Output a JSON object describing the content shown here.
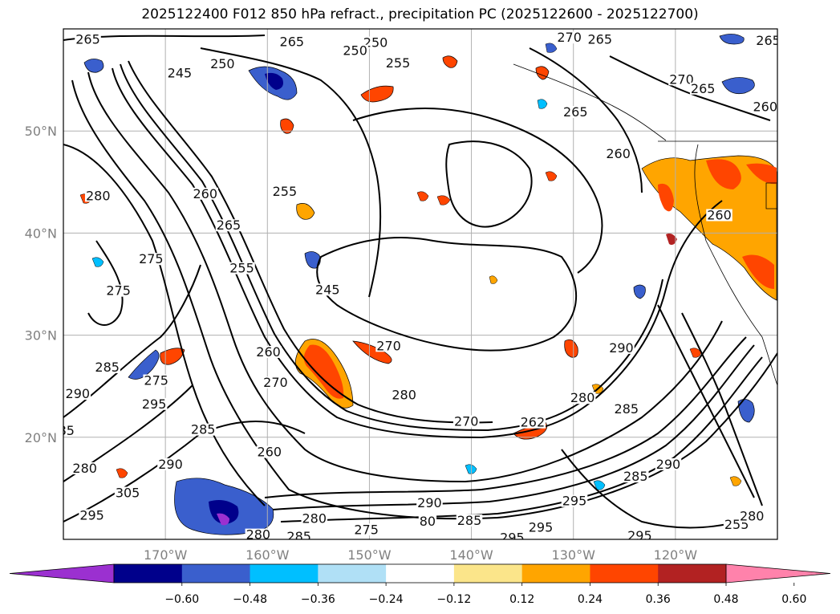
{
  "title": "2025122400 F012 850 hPa refract., precipitation PC (2025122600 - 2025122700)",
  "map": {
    "lat_labels": [
      "50°N",
      "40°N",
      "30°N",
      "20°N"
    ],
    "lat_values": [
      50,
      40,
      30,
      20
    ],
    "lon_labels": [
      "170°W",
      "160°W",
      "150°W",
      "140°W",
      "130°W",
      "120°W"
    ],
    "lon_values": [
      -170,
      -160,
      -150,
      -140,
      -130,
      -120
    ],
    "extent": {
      "lon_min": -180,
      "lon_max": -110,
      "lat_min": 10,
      "lat_max": 60
    },
    "grid": true,
    "contour_labels": [
      {
        "text": "265",
        "lon": -177.6,
        "lat": 59.0
      },
      {
        "text": "265",
        "lon": -157.6,
        "lat": 58.8
      },
      {
        "text": "250",
        "lon": -149.4,
        "lat": 58.7
      },
      {
        "text": "250",
        "lon": -151.4,
        "lat": 57.9
      },
      {
        "text": "255",
        "lon": -147.2,
        "lat": 56.7
      },
      {
        "text": "270",
        "lon": -130.4,
        "lat": 59.2
      },
      {
        "text": "265",
        "lon": -127.4,
        "lat": 59.0
      },
      {
        "text": "265",
        "lon": -110.9,
        "lat": 58.9
      },
      {
        "text": "250",
        "lon": -164.4,
        "lat": 56.6
      },
      {
        "text": "245",
        "lon": -168.6,
        "lat": 55.7
      },
      {
        "text": "270",
        "lon": -119.4,
        "lat": 55.1
      },
      {
        "text": "265",
        "lon": -117.3,
        "lat": 54.2
      },
      {
        "text": "260",
        "lon": -111.2,
        "lat": 52.4
      },
      {
        "text": "265",
        "lon": -129.8,
        "lat": 51.9
      },
      {
        "text": "260",
        "lon": -125.6,
        "lat": 47.8
      },
      {
        "text": "280",
        "lon": -176.6,
        "lat": 43.7
      },
      {
        "text": "260",
        "lon": -166.1,
        "lat": 43.9
      },
      {
        "text": "255",
        "lon": -158.3,
        "lat": 44.1
      },
      {
        "text": "265",
        "lon": -163.8,
        "lat": 40.8
      },
      {
        "text": "260",
        "lon": -115.7,
        "lat": 41.8
      },
      {
        "text": "275",
        "lon": -171.4,
        "lat": 37.5
      },
      {
        "text": "255",
        "lon": -162.5,
        "lat": 36.6
      },
      {
        "text": "275",
        "lon": -174.6,
        "lat": 34.4
      },
      {
        "text": "245",
        "lon": -154.1,
        "lat": 34.5
      },
      {
        "text": "260",
        "lon": -159.9,
        "lat": 28.4
      },
      {
        "text": "270",
        "lon": -148.1,
        "lat": 29.0
      },
      {
        "text": "290",
        "lon": -125.3,
        "lat": 28.8
      },
      {
        "text": "285",
        "lon": -175.7,
        "lat": 26.9
      },
      {
        "text": "275",
        "lon": -170.9,
        "lat": 25.6
      },
      {
        "text": "270",
        "lon": -159.2,
        "lat": 25.4
      },
      {
        "text": "280",
        "lon": -146.6,
        "lat": 24.2
      },
      {
        "text": "280",
        "lon": -129.1,
        "lat": 23.9
      },
      {
        "text": "290",
        "lon": -178.6,
        "lat": 24.3
      },
      {
        "text": "295",
        "lon": -171.1,
        "lat": 23.3
      },
      {
        "text": "285",
        "lon": -124.8,
        "lat": 22.8
      },
      {
        "text": "285",
        "lon": -166.3,
        "lat": 20.8
      },
      {
        "text": "270",
        "lon": -140.5,
        "lat": 21.6
      },
      {
        "text": "262",
        "lon": -134.0,
        "lat": 21.5
      },
      {
        "text": "85",
        "lon": -179.7,
        "lat": 20.7
      },
      {
        "text": "280",
        "lon": -177.9,
        "lat": 17.0
      },
      {
        "text": "290",
        "lon": -169.5,
        "lat": 17.4
      },
      {
        "text": "260",
        "lon": -159.8,
        "lat": 18.6
      },
      {
        "text": "290",
        "lon": -120.7,
        "lat": 17.4
      },
      {
        "text": "305",
        "lon": -173.7,
        "lat": 14.6
      },
      {
        "text": "285",
        "lon": -123.9,
        "lat": 16.2
      },
      {
        "text": "290",
        "lon": -144.1,
        "lat": 13.6
      },
      {
        "text": "295",
        "lon": -177.2,
        "lat": 12.4
      },
      {
        "text": "295",
        "lon": -129.9,
        "lat": 13.8
      },
      {
        "text": "280",
        "lon": -155.4,
        "lat": 12.1
      },
      {
        "text": "80",
        "lon": -144.3,
        "lat": 11.8
      },
      {
        "text": "285",
        "lon": -140.2,
        "lat": 11.9
      },
      {
        "text": "275",
        "lon": -150.3,
        "lat": 11.0
      },
      {
        "text": "295",
        "lon": -133.2,
        "lat": 11.2
      },
      {
        "text": "280",
        "lon": -160.9,
        "lat": 10.5
      },
      {
        "text": "285",
        "lon": -156.9,
        "lat": 10.3
      },
      {
        "text": "295",
        "lon": -136.0,
        "lat": 10.2
      },
      {
        "text": "295",
        "lon": -123.5,
        "lat": 10.4
      },
      {
        "text": "255",
        "lon": -114.0,
        "lat": 11.5
      },
      {
        "text": "280",
        "lon": -112.5,
        "lat": 12.3
      }
    ]
  },
  "colorbar": {
    "tick_labels": [
      "−0.60",
      "−0.48",
      "−0.36",
      "−0.24",
      "−0.12",
      "0.12",
      "0.24",
      "0.36",
      "0.48",
      "0.60"
    ],
    "colors": [
      "#9b30d0",
      "#00008b",
      "#3a5fcd",
      "#00bfff",
      "#b0e0f6",
      "#ffffff",
      "#fbe58a",
      "#ffa500",
      "#ff4500",
      "#b22222",
      "#ff82ab"
    ]
  },
  "colors": {
    "contour": "#000000",
    "grid": "#b0b0b0",
    "label_gray": "#808080"
  }
}
